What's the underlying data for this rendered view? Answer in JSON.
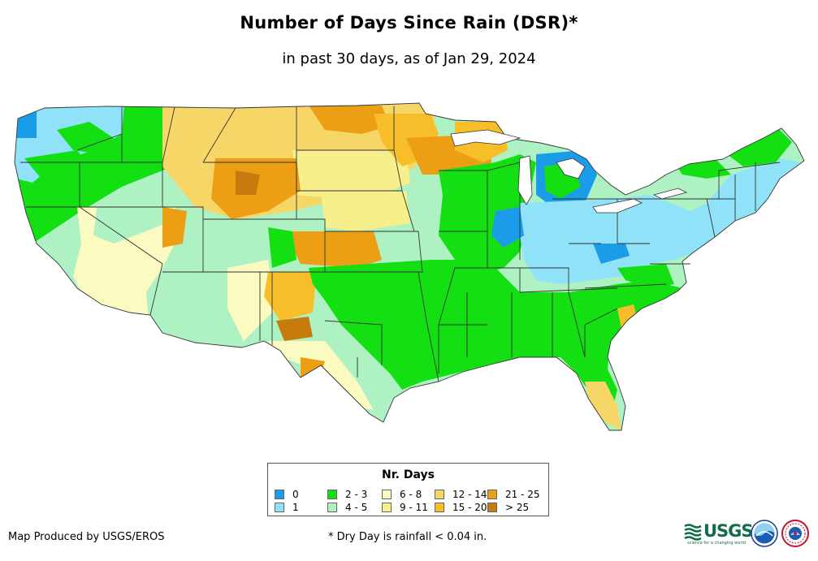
{
  "title": "Number of Days Since Rain (DSR)*",
  "subtitle": "in past 30 days, as of Jan 29, 2024",
  "legend": {
    "title": "Nr. Days",
    "items": [
      {
        "label": "0",
        "color": "#1a9ce8"
      },
      {
        "label": "1",
        "color": "#8fe2f7"
      },
      {
        "label": "2 - 3",
        "color": "#13df13"
      },
      {
        "label": "4 - 5",
        "color": "#aef2c3"
      },
      {
        "label": "6 - 8",
        "color": "#fafac1"
      },
      {
        "label": "9 - 11",
        "color": "#f7ee8c"
      },
      {
        "label": "12 - 14",
        "color": "#f6d667"
      },
      {
        "label": "15 - 20",
        "color": "#f7be29"
      },
      {
        "label": "21 - 25",
        "color": "#ec9f14"
      },
      {
        "label": "> 25",
        "color": "#c77b0c"
      }
    ]
  },
  "credit": "Map Produced by USGS/EROS",
  "footnote": "* Dry Day is rainfall < 0.04 in.",
  "logos": {
    "usgs": "USGS",
    "usgs_tagline": "science for a changing world",
    "noaa": "NOAA",
    "nws": "NWS"
  }
}
